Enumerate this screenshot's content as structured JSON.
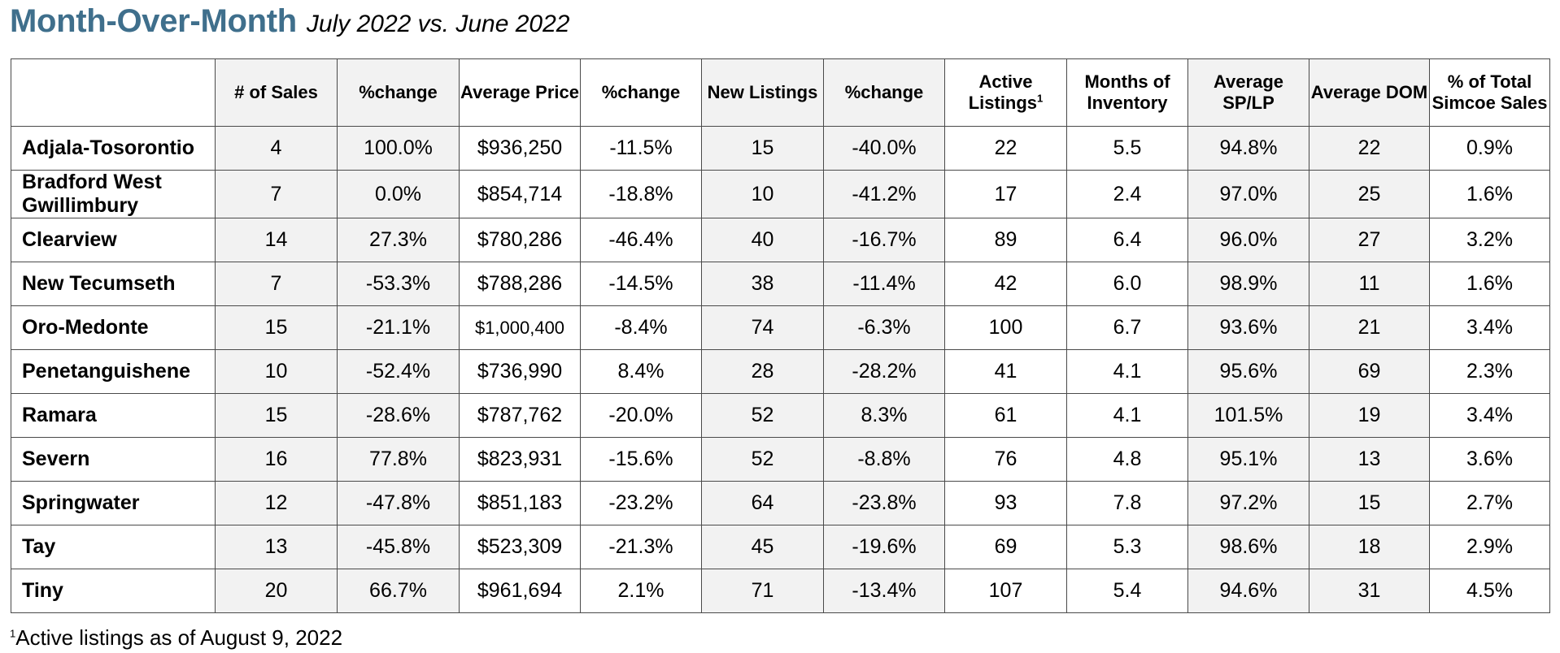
{
  "title": {
    "main": "Month-Over-Month",
    "sub": "July 2022 vs. June 2022"
  },
  "table": {
    "columns": [
      "",
      "# of Sales",
      "%change",
      "Average Price",
      "%change",
      "New Listings",
      "%change",
      "Active Listings",
      "Months of Inventory",
      "Average SP/LP",
      "Average DOM",
      "% of Total Simcoe Sales"
    ],
    "active_listings_footnote_mark": "1",
    "rows": [
      {
        "area": "Adjala-Tosorontio",
        "sales": "4",
        "sales_change": "100.0%",
        "avg_price": "$936,250",
        "price_change": "-11.5%",
        "new_listings": "15",
        "listings_change": "-40.0%",
        "active": "22",
        "months_inv": "5.5",
        "sp_lp": "94.8%",
        "dom": "22",
        "pct_total": "0.9%"
      },
      {
        "area": "Bradford West Gwillimbury",
        "sales": "7",
        "sales_change": "0.0%",
        "avg_price": "$854,714",
        "price_change": "-18.8%",
        "new_listings": "10",
        "listings_change": "-41.2%",
        "active": "17",
        "months_inv": "2.4",
        "sp_lp": "97.0%",
        "dom": "25",
        "pct_total": "1.6%"
      },
      {
        "area": "Clearview",
        "sales": "14",
        "sales_change": "27.3%",
        "avg_price": "$780,286",
        "price_change": "-46.4%",
        "new_listings": "40",
        "listings_change": "-16.7%",
        "active": "89",
        "months_inv": "6.4",
        "sp_lp": "96.0%",
        "dom": "27",
        "pct_total": "3.2%"
      },
      {
        "area": "New Tecumseth",
        "sales": "7",
        "sales_change": "-53.3%",
        "avg_price": "$788,286",
        "price_change": "-14.5%",
        "new_listings": "38",
        "listings_change": "-11.4%",
        "active": "42",
        "months_inv": "6.0",
        "sp_lp": "98.9%",
        "dom": "11",
        "pct_total": "1.6%"
      },
      {
        "area": "Oro-Medonte",
        "sales": "15",
        "sales_change": "-21.1%",
        "avg_price": "$1,000,400",
        "price_change": "-8.4%",
        "new_listings": "74",
        "listings_change": "-6.3%",
        "active": "100",
        "months_inv": "6.7",
        "sp_lp": "93.6%",
        "dom": "21",
        "pct_total": "3.4%"
      },
      {
        "area": "Penetanguishene",
        "sales": "10",
        "sales_change": "-52.4%",
        "avg_price": "$736,990",
        "price_change": "8.4%",
        "new_listings": "28",
        "listings_change": "-28.2%",
        "active": "41",
        "months_inv": "4.1",
        "sp_lp": "95.6%",
        "dom": "69",
        "pct_total": "2.3%"
      },
      {
        "area": "Ramara",
        "sales": "15",
        "sales_change": "-28.6%",
        "avg_price": "$787,762",
        "price_change": "-20.0%",
        "new_listings": "52",
        "listings_change": "8.3%",
        "active": "61",
        "months_inv": "4.1",
        "sp_lp": "101.5%",
        "dom": "19",
        "pct_total": "3.4%"
      },
      {
        "area": "Severn",
        "sales": "16",
        "sales_change": "77.8%",
        "avg_price": "$823,931",
        "price_change": "-15.6%",
        "new_listings": "52",
        "listings_change": "-8.8%",
        "active": "76",
        "months_inv": "4.8",
        "sp_lp": "95.1%",
        "dom": "13",
        "pct_total": "3.6%"
      },
      {
        "area": "Springwater",
        "sales": "12",
        "sales_change": "-47.8%",
        "avg_price": "$851,183",
        "price_change": "-23.2%",
        "new_listings": "64",
        "listings_change": "-23.8%",
        "active": "93",
        "months_inv": "7.8",
        "sp_lp": "97.2%",
        "dom": "15",
        "pct_total": "2.7%"
      },
      {
        "area": "Tay",
        "sales": "13",
        "sales_change": "-45.8%",
        "avg_price": "$523,309",
        "price_change": "-21.3%",
        "new_listings": "45",
        "listings_change": "-19.6%",
        "active": "69",
        "months_inv": "5.3",
        "sp_lp": "98.6%",
        "dom": "18",
        "pct_total": "2.9%"
      },
      {
        "area": "Tiny",
        "sales": "20",
        "sales_change": "66.7%",
        "avg_price": "$961,694",
        "price_change": "2.1%",
        "new_listings": "71",
        "listings_change": "-13.4%",
        "active": "107",
        "months_inv": "5.4",
        "sp_lp": "94.6%",
        "dom": "31",
        "pct_total": "4.5%"
      }
    ]
  },
  "footnote": {
    "mark": "1",
    "text": "Active listings as of August 9, 2022"
  },
  "colors": {
    "title": "#3f6f8c",
    "shaded_column": "#f2f2f2",
    "border": "#4a4a4a"
  }
}
